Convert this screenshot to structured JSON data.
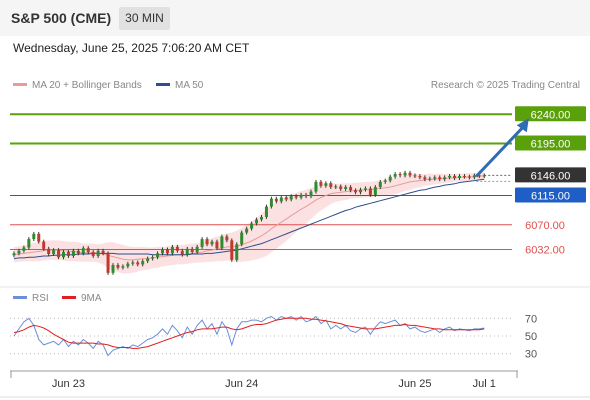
{
  "header": {
    "title": "S&P 500 (CME)",
    "timeframe": "30 MIN",
    "datetime": "Wednesday, June 25, 2025 7:06:20 AM CET"
  },
  "legend": {
    "ma20": "MA 20 + Bollinger Bands",
    "ma50": "MA 50",
    "credit": "Research © 2025 Trading Central",
    "rsi": "RSI",
    "rsi_ma": "9MA"
  },
  "colors": {
    "ma20": "#e99b9b",
    "ma50": "#2d4f8a",
    "bollinger_fill": "#fbe1e1",
    "candle_up": "#2e8b2e",
    "candle_down": "#c0392b",
    "target_green": "#5aa00a",
    "pivot_blue": "#1f5fc5",
    "support_red": "#e05050",
    "current_box": "#333333",
    "arrow": "#2f6cb4",
    "rsi_line": "#6b8fd8",
    "rsi_ma": "#e02020"
  },
  "chart_data": [
    {
      "type": "candlestick",
      "title": "S&P 500 (CME)",
      "timeframe": "30 MIN",
      "y_range": [
        5985,
        6262
      ],
      "x_ticks": [
        {
          "label": "Jun 23",
          "bar": 11
        },
        {
          "label": "Jun 24",
          "bar": 46
        },
        {
          "label": "Jun 25",
          "bar": 81
        },
        {
          "label": "Jul 1",
          "bar": 95
        }
      ],
      "levels": [
        {
          "value": 6240.0,
          "label": "6240.00",
          "kind": "resistance"
        },
        {
          "value": 6195.0,
          "label": "6195.00",
          "kind": "resistance"
        },
        {
          "value": 6146.0,
          "label": "6146.00",
          "kind": "current"
        },
        {
          "value": 6115.0,
          "label": "6115.00",
          "kind": "pivot"
        },
        {
          "value": 6070.0,
          "label": "6070.00",
          "kind": "support"
        },
        {
          "value": 6032.0,
          "label": "6032.00",
          "kind": "support"
        }
      ],
      "target_arrow": {
        "from_bar": 95,
        "from_value": 6146,
        "to_bar": 104,
        "to_value": 6240
      },
      "closes": [
        6026,
        6030,
        6035,
        6048,
        6056,
        6044,
        6033,
        6025,
        6031,
        6020,
        6028,
        6022,
        6030,
        6026,
        6034,
        6028,
        6022,
        6030,
        6026,
        5996,
        6008,
        6004,
        6006,
        6010,
        6012,
        6009,
        6014,
        6018,
        6020,
        6026,
        6032,
        6026,
        6036,
        6030,
        6024,
        6033,
        6028,
        6036,
        6048,
        6040,
        6044,
        6034,
        6052,
        6046,
        6016,
        6040,
        6058,
        6064,
        6072,
        6078,
        6082,
        6098,
        6110,
        6106,
        6112,
        6109,
        6114,
        6112,
        6116,
        6114,
        6121,
        6136,
        6130,
        6134,
        6128,
        6129,
        6125,
        6128,
        6123,
        6120,
        6124,
        6126,
        6116,
        6128,
        6136,
        6138,
        6144,
        6148,
        6146,
        6150,
        6146,
        6145,
        6143,
        6140,
        6141,
        6143,
        6140,
        6143,
        6145,
        6142,
        6145,
        6144,
        6143,
        6146,
        6145,
        6146
      ],
      "ma20": [
        6024,
        6025,
        6026,
        6027,
        6028,
        6029,
        6030,
        6031,
        6031,
        6031,
        6030,
        6029,
        6029,
        6028,
        6027,
        6027,
        6027,
        6026,
        6025,
        6023,
        6021,
        6019,
        6017,
        6016,
        6016,
        6017,
        6018,
        6018,
        6019,
        6020,
        6021,
        6022,
        6023,
        6024,
        6024,
        6025,
        6026,
        6027,
        6028,
        6030,
        6031,
        6033,
        6034,
        6036,
        6036,
        6037,
        6039,
        6042,
        6045,
        6049,
        6053,
        6058,
        6064,
        6069,
        6074,
        6079,
        6084,
        6089,
        6094,
        6098,
        6103,
        6108,
        6112,
        6115,
        6118,
        6119,
        6120,
        6121,
        6122,
        6123,
        6123,
        6124,
        6124,
        6125,
        6126,
        6127,
        6128,
        6130,
        6132,
        6134,
        6136,
        6137,
        6138,
        6139,
        6140,
        6140,
        6141,
        6141,
        6142,
        6142,
        6143,
        6143,
        6144,
        6144,
        6145,
        6145
      ],
      "ma50": [
        6018,
        6019,
        6019,
        6020,
        6020,
        6021,
        6022,
        6022,
        6023,
        6023,
        6024,
        6024,
        6024,
        6025,
        6025,
        6025,
        6026,
        6026,
        6026,
        6026,
        6026,
        6025,
        6025,
        6025,
        6025,
        6025,
        6025,
        6025,
        6024,
        6024,
        6024,
        6024,
        6024,
        6024,
        6024,
        6024,
        6025,
        6025,
        6025,
        6026,
        6026,
        6027,
        6028,
        6029,
        6030,
        6031,
        6033,
        6035,
        6037,
        6039,
        6041,
        6044,
        6047,
        6050,
        6053,
        6056,
        6059,
        6062,
        6065,
        6068,
        6071,
        6074,
        6077,
        6080,
        6083,
        6086,
        6089,
        6092,
        6094,
        6097,
        6099,
        6101,
        6103,
        6105,
        6107,
        6109,
        6111,
        6113,
        6115,
        6117,
        6119,
        6121,
        6123,
        6124,
        6126,
        6128,
        6129,
        6131,
        6132,
        6133,
        6135,
        6136,
        6137,
        6138,
        6139,
        6140
      ],
      "bb_width": [
        12,
        12,
        12,
        13,
        14,
        15,
        15,
        15,
        15,
        15,
        15,
        15,
        15,
        15,
        14,
        14,
        14,
        14,
        16,
        20,
        22,
        22,
        22,
        21,
        20,
        19,
        18,
        17,
        16,
        16,
        15,
        15,
        15,
        15,
        15,
        15,
        15,
        15,
        16,
        17,
        18,
        19,
        20,
        21,
        22,
        24,
        26,
        28,
        30,
        32,
        34,
        36,
        36,
        36,
        35,
        34,
        32,
        30,
        28,
        26,
        24,
        22,
        20,
        18,
        16,
        14,
        13,
        13,
        12,
        12,
        12,
        12,
        12,
        12,
        12,
        12,
        13,
        13,
        13,
        12,
        12,
        11,
        10,
        9,
        9,
        8,
        8,
        7,
        7,
        6,
        6,
        6,
        6,
        5,
        5,
        5
      ]
    },
    {
      "type": "line",
      "title": "RSI",
      "y_ticks": [
        70,
        50,
        30
      ],
      "y_range": [
        15,
        85
      ],
      "series": [
        {
          "name": "RSI",
          "values": [
            50,
            58,
            66,
            70,
            62,
            46,
            40,
            42,
            44,
            40,
            46,
            38,
            44,
            40,
            46,
            42,
            36,
            44,
            40,
            28,
            34,
            36,
            38,
            36,
            40,
            38,
            42,
            46,
            48,
            52,
            58,
            52,
            62,
            56,
            48,
            60,
            52,
            62,
            68,
            58,
            64,
            52,
            66,
            58,
            40,
            58,
            66,
            66,
            68,
            68,
            66,
            70,
            72,
            68,
            72,
            70,
            72,
            68,
            72,
            66,
            68,
            72,
            64,
            68,
            58,
            62,
            58,
            62,
            56,
            54,
            58,
            60,
            52,
            60,
            66,
            64,
            66,
            68,
            62,
            64,
            58,
            60,
            56,
            54,
            56,
            58,
            54,
            58,
            60,
            56,
            58,
            57,
            56,
            58,
            58,
            59
          ]
        },
        {
          "name": "9MA",
          "values": [
            54,
            55,
            57,
            60,
            62,
            61,
            59,
            56,
            52,
            49,
            46,
            43,
            42,
            42,
            42,
            42,
            42,
            41,
            41,
            40,
            38,
            37,
            37,
            37,
            36,
            36,
            37,
            38,
            40,
            42,
            44,
            46,
            48,
            50,
            52,
            54,
            55,
            57,
            58,
            58,
            58,
            59,
            60,
            60,
            58,
            57,
            58,
            60,
            62,
            63,
            63,
            64,
            66,
            68,
            69,
            70,
            70,
            70,
            70,
            70,
            69,
            69,
            68,
            67,
            66,
            65,
            64,
            62,
            61,
            60,
            59,
            58,
            58,
            58,
            59,
            60,
            61,
            62,
            62,
            63,
            62,
            62,
            61,
            60,
            59,
            58,
            58,
            57,
            57,
            57,
            57,
            57,
            57,
            57,
            57,
            58
          ]
        }
      ]
    }
  ]
}
